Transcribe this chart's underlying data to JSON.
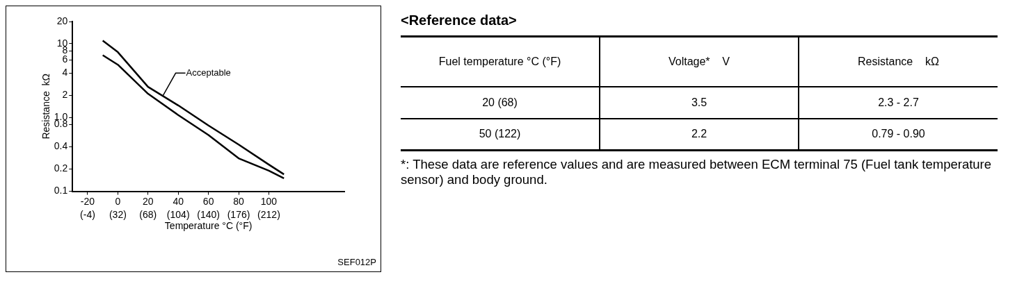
{
  "chart_data": [
    {
      "type": "line",
      "xlabel": "Temperature °C (°F)",
      "ylabel": "Resistance  kΩ",
      "x": [
        -10,
        0,
        20,
        40,
        60,
        80,
        100,
        110
      ],
      "series": [
        {
          "color": "#000000",
          "values": [
            11,
            7.7,
            2.6,
            1.46,
            0.78,
            0.43,
            0.23,
            0.17
          ]
        },
        {
          "color": "#000000",
          "values": [
            7,
            5.2,
            2.1,
            1.08,
            0.58,
            0.28,
            0.19,
            0.15
          ]
        }
      ],
      "log": "y",
      "xlim": [
        -30,
        150
      ],
      "ylim": [
        0.1,
        20
      ],
      "xticks": [
        -20,
        0,
        20,
        40,
        60,
        80,
        100
      ],
      "x2lim": [
        -22,
        302
      ],
      "x2ticks": [
        {
          "value": -4,
          "label": "(-4)"
        },
        {
          "value": 32,
          "label": "(32)"
        },
        {
          "value": 68,
          "label": "(68)"
        },
        {
          "value": 104,
          "label": "(104)"
        },
        {
          "value": 140,
          "label": "(140)"
        },
        {
          "value": 176,
          "label": "(176)"
        },
        {
          "value": 212,
          "label": "(212)"
        }
      ],
      "yticks": [
        0.1,
        0.2,
        0.4,
        0.8,
        {
          "value": 1,
          "label": "1.0"
        },
        2,
        4,
        6,
        8,
        10,
        20
      ],
      "grid": false,
      "legend": false,
      "marker": "none",
      "line_style": "solid",
      "annotations": [
        {
          "text": "Acceptable",
          "x": 30,
          "y": 2
        },
        "SEF012P"
      ]
    },
    {
      "type": "other",
      "title": "<Reference data>",
      "categories": [
        "Fuel temperature °C (°F)",
        "Voltage*    V",
        "Resistance    kΩ"
      ],
      "y_categories": [
        "20 (68)",
        "50 (122)"
      ],
      "cell_labels": [
        [
          "3.5",
          "2.3 - 2.7"
        ],
        [
          "2.2",
          "0.79 - 0.90"
        ]
      ],
      "annotations": [
        "*: These data are reference values and are measured between ECM terminal 75 (Fuel tank temperature sensor) and body ground."
      ]
    }
  ]
}
